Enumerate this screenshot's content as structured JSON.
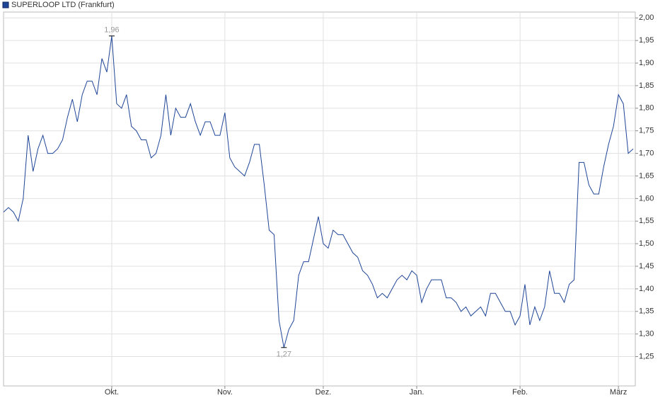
{
  "chart_data": {
    "type": "line",
    "series": [
      {
        "name": "SUPERLOOP LTD (Frankfurt)",
        "color": "#1f4597",
        "values": [
          1.57,
          1.58,
          1.57,
          1.55,
          1.6,
          1.74,
          1.66,
          1.71,
          1.74,
          1.7,
          1.7,
          1.71,
          1.73,
          1.78,
          1.82,
          1.77,
          1.83,
          1.86,
          1.86,
          1.83,
          1.91,
          1.88,
          1.96,
          1.81,
          1.8,
          1.83,
          1.76,
          1.75,
          1.73,
          1.73,
          1.69,
          1.7,
          1.74,
          1.83,
          1.74,
          1.8,
          1.78,
          1.78,
          1.81,
          1.77,
          1.74,
          1.77,
          1.77,
          1.74,
          1.74,
          1.79,
          1.69,
          1.67,
          1.66,
          1.65,
          1.68,
          1.72,
          1.72,
          1.63,
          1.53,
          1.52,
          1.33,
          1.27,
          1.31,
          1.33,
          1.43,
          1.46,
          1.46,
          1.51,
          1.56,
          1.5,
          1.49,
          1.53,
          1.52,
          1.52,
          1.5,
          1.48,
          1.47,
          1.44,
          1.43,
          1.41,
          1.38,
          1.39,
          1.38,
          1.4,
          1.42,
          1.43,
          1.42,
          1.44,
          1.43,
          1.37,
          1.4,
          1.42,
          1.42,
          1.42,
          1.38,
          1.38,
          1.37,
          1.35,
          1.36,
          1.34,
          1.35,
          1.36,
          1.34,
          1.39,
          1.39,
          1.37,
          1.35,
          1.35,
          1.32,
          1.34,
          1.41,
          1.32,
          1.36,
          1.33,
          1.36,
          1.44,
          1.39,
          1.39,
          1.37,
          1.41,
          1.42,
          1.68,
          1.68,
          1.63,
          1.61,
          1.61,
          1.67,
          1.72,
          1.76,
          1.83,
          1.81,
          1.7,
          1.71
        ]
      }
    ],
    "x": [
      0,
      1,
      2,
      3,
      4,
      5,
      6,
      7,
      8,
      9,
      10,
      11,
      12,
      13,
      14,
      15,
      16,
      17,
      18,
      19,
      20,
      21,
      22,
      23,
      24,
      25,
      26,
      27,
      28,
      29,
      30,
      31,
      32,
      33,
      34,
      35,
      36,
      37,
      38,
      39,
      40,
      41,
      42,
      43,
      44,
      45,
      46,
      47,
      48,
      49,
      50,
      51,
      52,
      53,
      54,
      55,
      56,
      57,
      58,
      59,
      60,
      61,
      62,
      63,
      64,
      65,
      66,
      67,
      68,
      69,
      70,
      71,
      72,
      73,
      74,
      75,
      76,
      77,
      78,
      79,
      80,
      81,
      82,
      83,
      84,
      85,
      86,
      87,
      88,
      89,
      90,
      91,
      92,
      93,
      94,
      95,
      96,
      97,
      98,
      99,
      100,
      101,
      102,
      103,
      104,
      105,
      106,
      107,
      108,
      109,
      110,
      111,
      112,
      113,
      114,
      115,
      116,
      117,
      118,
      119,
      120,
      121,
      122,
      123,
      124,
      125,
      126,
      127,
      128
    ],
    "xlim": [
      0,
      128
    ],
    "xticks": [
      {
        "value": 22,
        "label": "Okt."
      },
      {
        "value": 45,
        "label": "Nov."
      },
      {
        "value": 65,
        "label": "Dez."
      },
      {
        "value": 84,
        "label": "Jan."
      },
      {
        "value": 105,
        "label": "Feb."
      },
      {
        "value": 125,
        "label": "März"
      }
    ],
    "ylim": [
      1.185,
      2.013
    ],
    "yticks": [
      {
        "value": 1.25,
        "label": "1,25"
      },
      {
        "value": 1.3,
        "label": "1,30"
      },
      {
        "value": 1.35,
        "label": "1,35"
      },
      {
        "value": 1.4,
        "label": "1,40"
      },
      {
        "value": 1.45,
        "label": "1,45"
      },
      {
        "value": 1.5,
        "label": "1,50"
      },
      {
        "value": 1.55,
        "label": "1,55"
      },
      {
        "value": 1.6,
        "label": "1,60"
      },
      {
        "value": 1.65,
        "label": "1,65"
      },
      {
        "value": 1.7,
        "label": "1,70"
      },
      {
        "value": 1.75,
        "label": "1,75"
      },
      {
        "value": 1.8,
        "label": "1,80"
      },
      {
        "value": 1.85,
        "label": "1,85"
      },
      {
        "value": 1.9,
        "label": "1,90"
      },
      {
        "value": 1.95,
        "label": "1,95"
      },
      {
        "value": 2.0,
        "label": "2,00"
      }
    ],
    "grid": true,
    "annotations": [
      {
        "label": "1,96",
        "x": 22,
        "y": 1.96,
        "position": "above"
      },
      {
        "label": "1,27",
        "x": 57,
        "y": 1.27,
        "position": "below"
      }
    ]
  }
}
